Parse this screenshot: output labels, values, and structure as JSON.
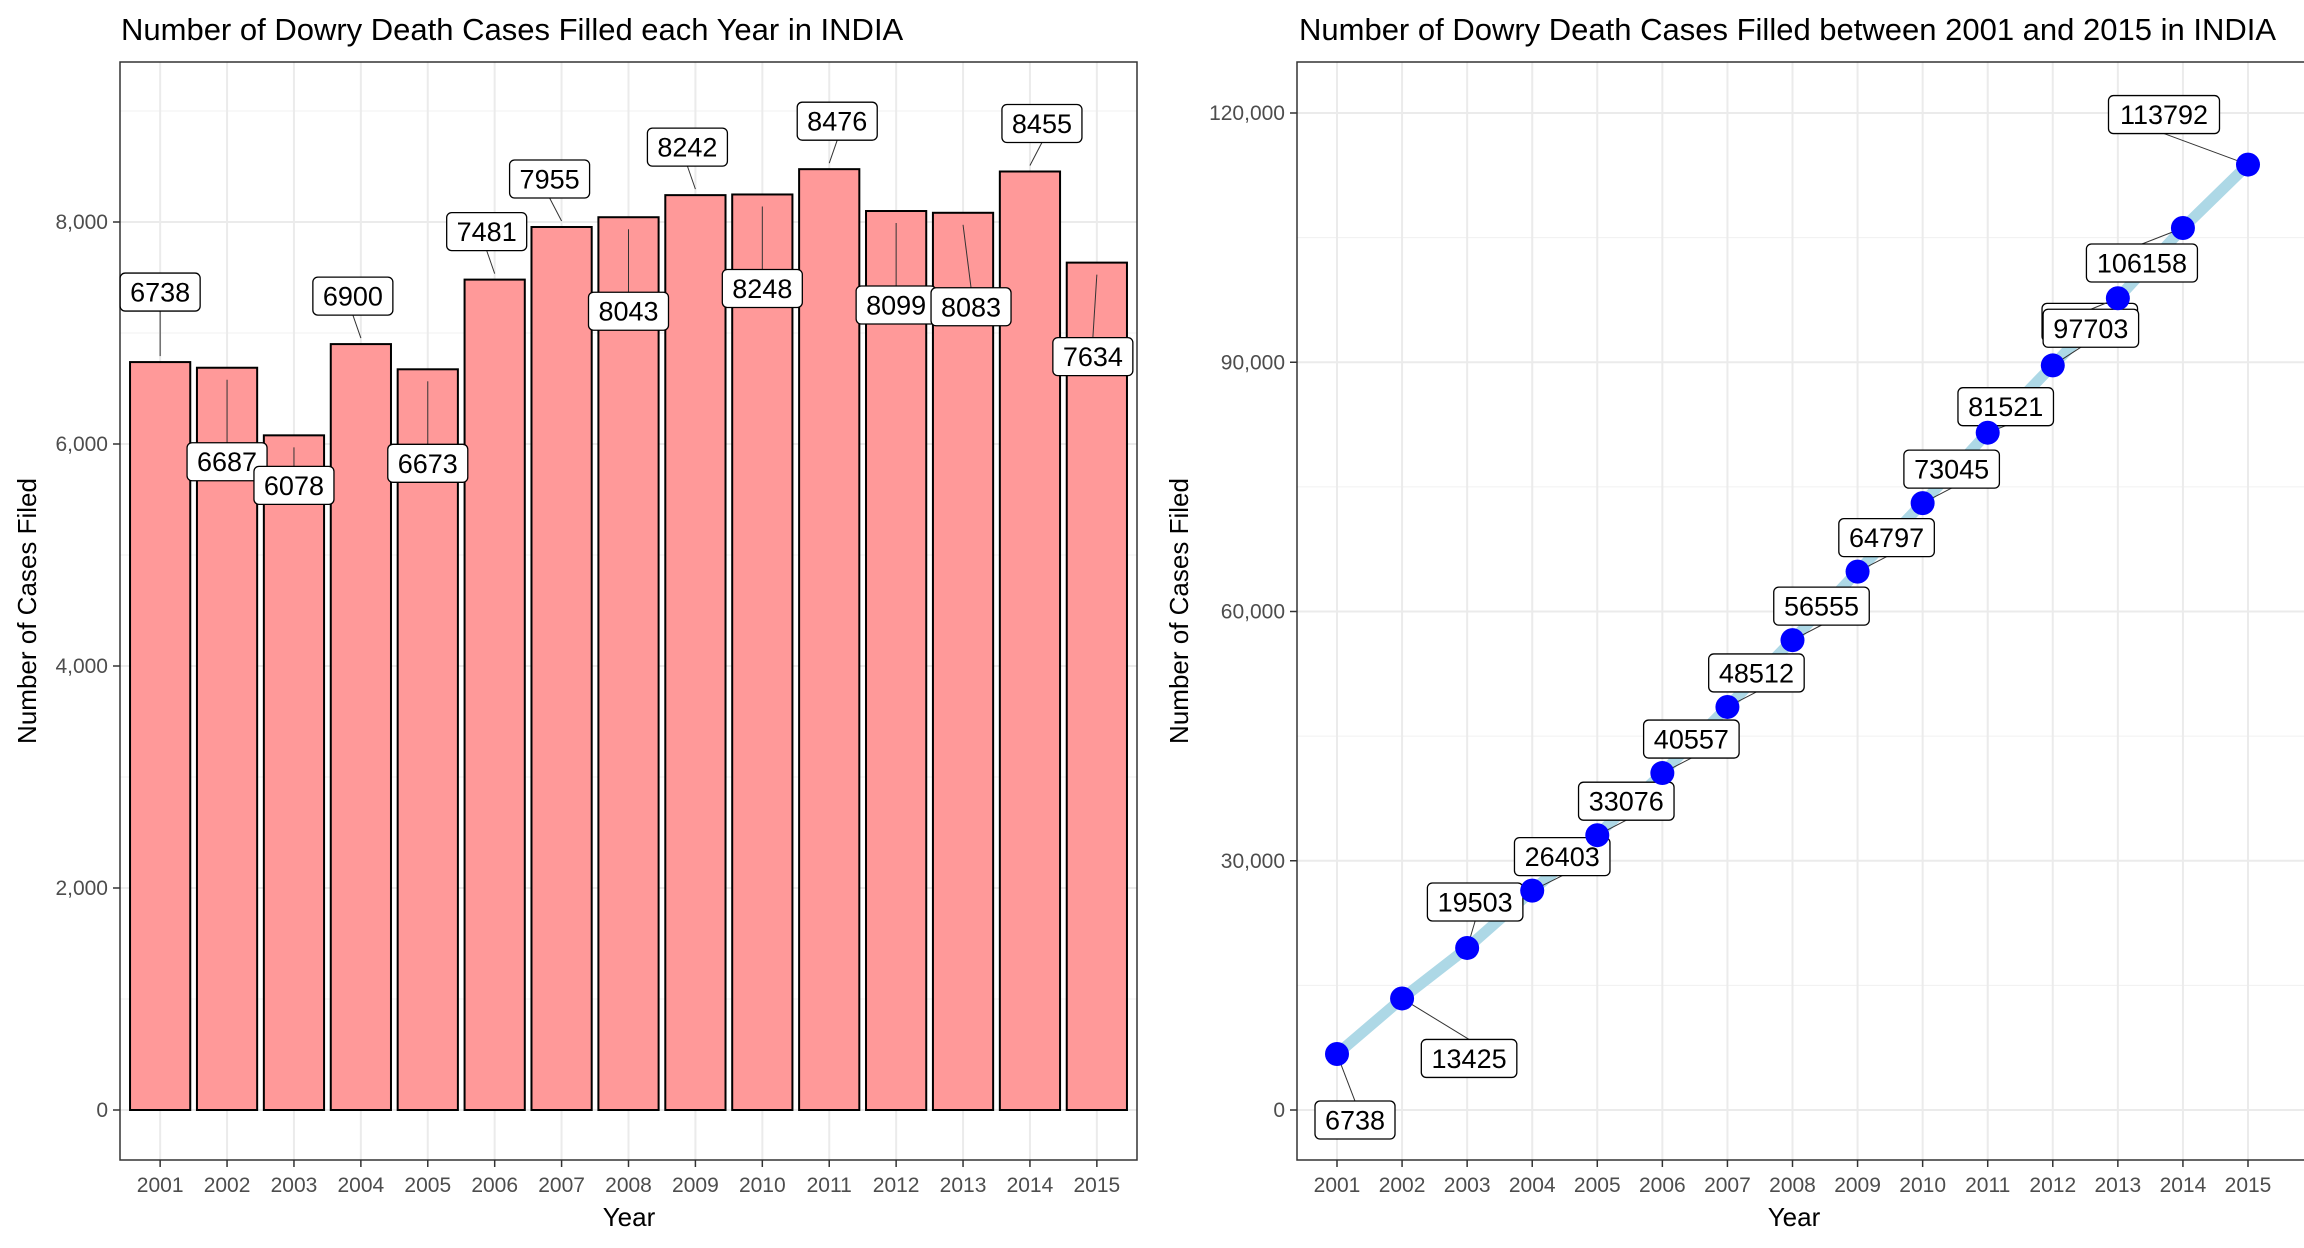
{
  "chart_data": [
    {
      "type": "bar",
      "title": "Number of Dowry Death Cases Filled each Year in INDIA",
      "xlabel": "Year",
      "ylabel": "Number of Cases Filed",
      "categories": [
        "2001",
        "2002",
        "2003",
        "2004",
        "2005",
        "2006",
        "2007",
        "2008",
        "2009",
        "2010",
        "2011",
        "2012",
        "2013",
        "2014",
        "2015"
      ],
      "values": [
        6738,
        6687,
        6078,
        6900,
        6673,
        7481,
        7955,
        8043,
        8242,
        8248,
        8476,
        8099,
        8083,
        8455,
        7634
      ],
      "labels": [
        "6738",
        "6687",
        "6078",
        "6900",
        "6673",
        "7481",
        "7955",
        "8043",
        "8242",
        "8248",
        "8476",
        "8099",
        "8083",
        "8455",
        "7634"
      ],
      "yticks": [
        0,
        2000,
        4000,
        6000,
        8000
      ],
      "ytick_labels": [
        "0",
        "2,000",
        "4,000",
        "6,000",
        "8,000"
      ],
      "ylim": [
        0,
        9000
      ],
      "grid": true,
      "colors": {
        "bar_fill": "#ff9999",
        "bar_stroke": "#000000"
      }
    },
    {
      "type": "line",
      "title": "Number of Dowry Death Cases Filled between 2001 and 2015 in INDIA",
      "xlabel": "Year",
      "ylabel": "Number of Cases Filed",
      "x": [
        "2001",
        "2002",
        "2003",
        "2004",
        "2005",
        "2006",
        "2007",
        "2008",
        "2009",
        "2010",
        "2011",
        "2012",
        "2013",
        "2014",
        "2015"
      ],
      "values": [
        6738,
        13425,
        19503,
        26403,
        33076,
        40557,
        48512,
        56555,
        64797,
        73045,
        81521,
        89620,
        97703,
        106158,
        113792
      ],
      "labels": [
        "6738",
        "13425",
        "19503",
        "26403",
        "33076",
        "40557",
        "48512",
        "56555",
        "64797",
        "73045",
        "81521",
        "89620",
        "97703",
        "106158",
        "113792"
      ],
      "yticks": [
        0,
        30000,
        60000,
        90000,
        120000
      ],
      "ytick_labels": [
        "0",
        "30,000",
        "60,000",
        "90,000",
        "120,000"
      ],
      "ylim": [
        -6000,
        120000
      ],
      "grid": true,
      "colors": {
        "line": "#add8e6",
        "point": "#0000ff"
      }
    }
  ]
}
